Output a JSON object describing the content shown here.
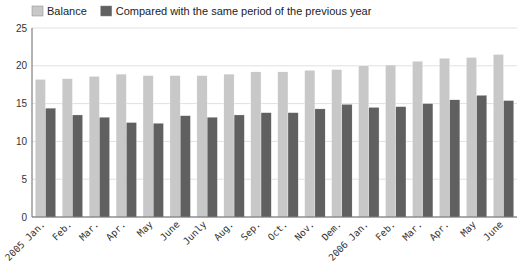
{
  "chart_data": {
    "type": "bar",
    "categories": [
      "2005 Jan.",
      "Feb.",
      "Mar.",
      "Apr.",
      "May",
      "June",
      "Junly",
      "Aug.",
      "Sep.",
      "Oct.",
      "Nov.",
      "Dem.",
      "2006 Jan.",
      "Feb.",
      "Mar.",
      "Apr.",
      "May",
      "June"
    ],
    "series": [
      {
        "name": "Balance",
        "color": "#c8c8c8",
        "values": [
          18.2,
          18.3,
          18.6,
          18.9,
          18.7,
          18.7,
          18.7,
          18.9,
          19.2,
          19.2,
          19.4,
          19.5,
          20.0,
          20.1,
          20.6,
          21.0,
          21.1,
          21.5
        ]
      },
      {
        "name": "Compared with the same period of the previous year",
        "color": "#606060",
        "values": [
          14.4,
          13.5,
          13.2,
          12.5,
          12.4,
          13.4,
          13.2,
          13.5,
          13.8,
          13.8,
          14.3,
          14.9,
          14.5,
          14.6,
          15.0,
          15.5,
          16.1,
          15.4
        ]
      }
    ],
    "ylim": [
      0,
      25
    ],
    "yticks": [
      0,
      5,
      10,
      15,
      20,
      25
    ],
    "grid": true,
    "legend": "upper-left"
  }
}
